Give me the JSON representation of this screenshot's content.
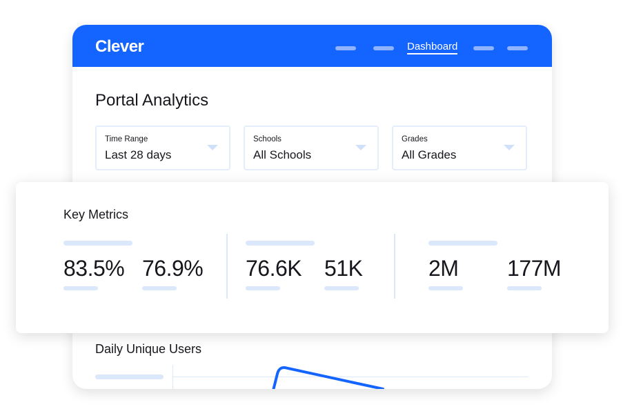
{
  "header": {
    "logo": "Clever",
    "nav_active": "Dashboard",
    "brand_color": "#1464ff"
  },
  "page": {
    "title": "Portal Analytics"
  },
  "filters": [
    {
      "label": "Time Range",
      "value": "Last 28 days"
    },
    {
      "label": "Schools",
      "value": "All Schools"
    },
    {
      "label": "Grades",
      "value": "All Grades"
    }
  ],
  "key_metrics": {
    "title": "Key Metrics",
    "values": [
      "83.5%",
      "76.9%",
      "76.6K",
      "51K",
      "2M",
      "177M"
    ]
  },
  "chart": {
    "title": "Daily Unique Users"
  }
}
